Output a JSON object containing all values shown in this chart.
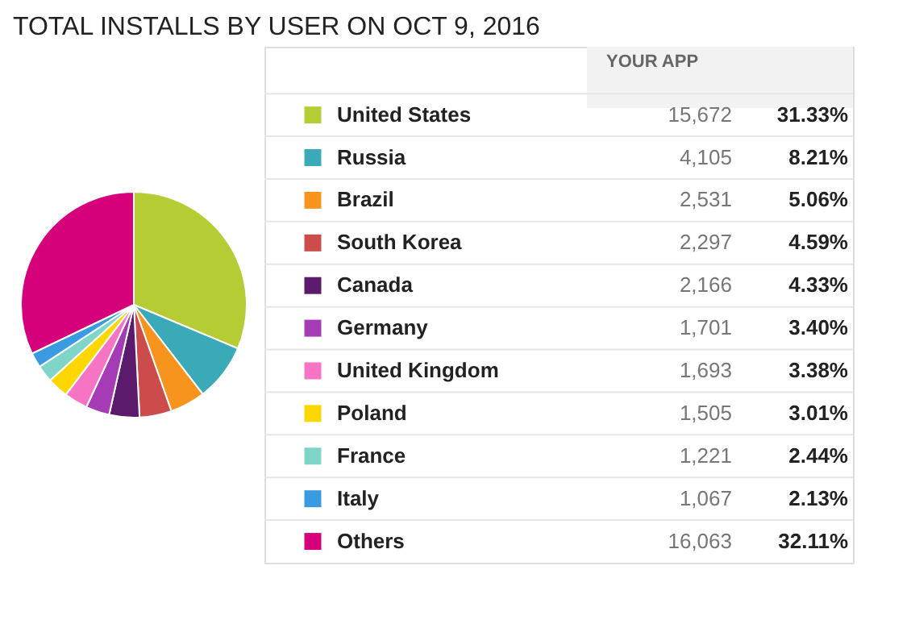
{
  "chart_data": {
    "type": "pie",
    "title": "TOTAL INSTALLS BY USER ON OCT 9, 2016",
    "categories": [
      "United States",
      "Russia",
      "Brazil",
      "South Korea",
      "Canada",
      "Germany",
      "United Kingdom",
      "Poland",
      "France",
      "Italy",
      "Others"
    ],
    "values": [
      15672,
      4105,
      2531,
      2297,
      2166,
      1701,
      1693,
      1505,
      1221,
      1067,
      16063
    ],
    "value_labels": [
      "15,672",
      "4,105",
      "2,531",
      "2,297",
      "2,166",
      "1,701",
      "1,693",
      "1,505",
      "1,221",
      "1,067",
      "16,063"
    ],
    "colors": [
      "#b5cc35",
      "#3aa9b8",
      "#f7941d",
      "#cc4b4b",
      "#5b1a6b",
      "#a63cb5",
      "#f774c4",
      "#ffd700",
      "#7fd6c8",
      "#3b9be0",
      "#d6007a"
    ],
    "legend": "right",
    "annotations": [
      "YOUR APP",
      "31.33%",
      "8.21%",
      "5.06%",
      "4.59%",
      "4.33%",
      "3.40%",
      "3.38%",
      "3.01%",
      "2.44%",
      "2.13%",
      "32.11%"
    ]
  }
}
